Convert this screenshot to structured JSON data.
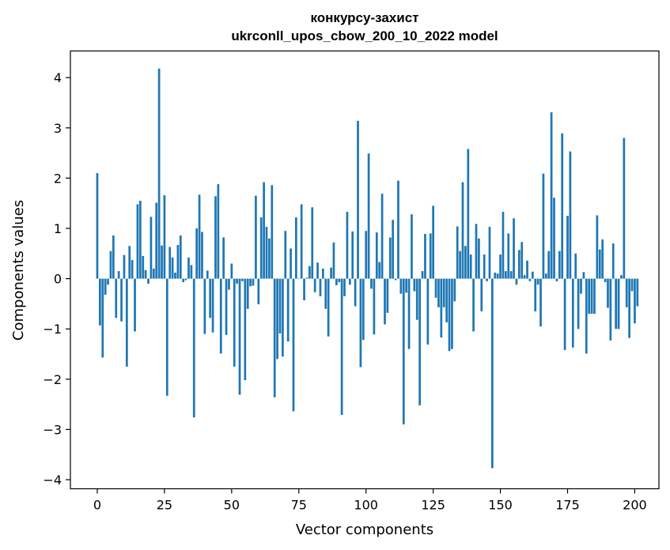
{
  "chart_data": {
    "type": "bar",
    "title_line1": "конкурсу-захист",
    "title_line2": "ukrconll_upos_cbow_200_10_2022 model",
    "xlabel": "Vector components",
    "ylabel": "Components values",
    "xlim": [
      -10,
      209
    ],
    "ylim": [
      -4.18,
      4.53
    ],
    "xticks": [
      0,
      25,
      50,
      75,
      100,
      125,
      150,
      175,
      200
    ],
    "yticks": [
      -4,
      -3,
      -2,
      -1,
      0,
      1,
      2,
      3,
      4
    ],
    "ytick_labels": [
      "−4",
      "−3",
      "−2",
      "−1",
      "0",
      "1",
      "2",
      "3",
      "4"
    ],
    "bar_color": "#1f77b4",
    "grid": false,
    "values": [
      2.1,
      -0.93,
      -1.57,
      -0.32,
      -0.12,
      0.55,
      0.86,
      -0.78,
      0.15,
      -0.85,
      0.47,
      -1.75,
      0.65,
      0.37,
      -1.05,
      1.48,
      1.55,
      0.45,
      0.17,
      -0.1,
      1.23,
      0.2,
      1.51,
      4.18,
      0.66,
      1.66,
      -2.33,
      0.63,
      0.42,
      0.12,
      0.67,
      0.86,
      -0.07,
      -0.03,
      0.42,
      0.27,
      -2.76,
      1.0,
      1.67,
      0.93,
      -1.1,
      0.16,
      -0.78,
      -1.07,
      1.64,
      1.88,
      -1.49,
      0.82,
      -1.12,
      -0.22,
      0.3,
      -1.75,
      -0.1,
      -2.31,
      -0.05,
      -2.02,
      -0.6,
      -0.15,
      -0.14,
      1.65,
      -0.51,
      1.22,
      1.92,
      1.03,
      0.8,
      1.86,
      -2.36,
      -1.6,
      -1.09,
      -1.55,
      0.95,
      -1.25,
      0.6,
      -2.64,
      1.22,
      0.0,
      1.48,
      -0.43,
      0.02,
      0.25,
      1.42,
      -0.27,
      0.32,
      -0.35,
      0.2,
      -0.6,
      -1.15,
      0.22,
      0.72,
      -0.13,
      -0.07,
      -2.71,
      -0.35,
      1.33,
      -0.12,
      0.94,
      -0.55,
      3.14,
      -1.76,
      -1.22,
      0.95,
      2.49,
      -0.2,
      -1.11,
      0.92,
      0.33,
      1.69,
      -0.91,
      -0.68,
      0.82,
      1.17,
      -0.03,
      1.95,
      -0.3,
      -2.9,
      -0.28,
      -1.4,
      1.28,
      -0.25,
      -0.82,
      -2.52,
      0.15,
      0.89,
      -1.31,
      0.9,
      1.45,
      -0.38,
      -0.57,
      -1.17,
      -0.57,
      -0.87,
      -1.44,
      -1.4,
      -0.45,
      1.04,
      0.55,
      1.92,
      0.65,
      2.58,
      0.48,
      -1.05,
      1.09,
      0.8,
      -0.65,
      0.48,
      -0.05,
      1.03,
      -3.77,
      0.12,
      0.1,
      0.48,
      1.33,
      0.15,
      0.9,
      0.15,
      1.2,
      -0.12,
      0.57,
      0.73,
      0.07,
      0.36,
      -0.05,
      0.14,
      -0.65,
      -0.12,
      -0.95,
      2.09,
      0.1,
      0.55,
      3.31,
      1.61,
      -0.05,
      0.55,
      2.89,
      -1.42,
      1.25,
      2.53,
      -1.37,
      0.5,
      -1.0,
      -0.3,
      0.13,
      -1.49,
      -0.7,
      -0.7,
      -0.7,
      1.26,
      0.58,
      0.78,
      -0.07,
      -0.58,
      -1.23,
      0.7,
      -1.0,
      -1.0,
      0.07,
      2.8,
      -0.57,
      -1.18,
      -0.25,
      -0.89,
      -0.55
    ]
  }
}
